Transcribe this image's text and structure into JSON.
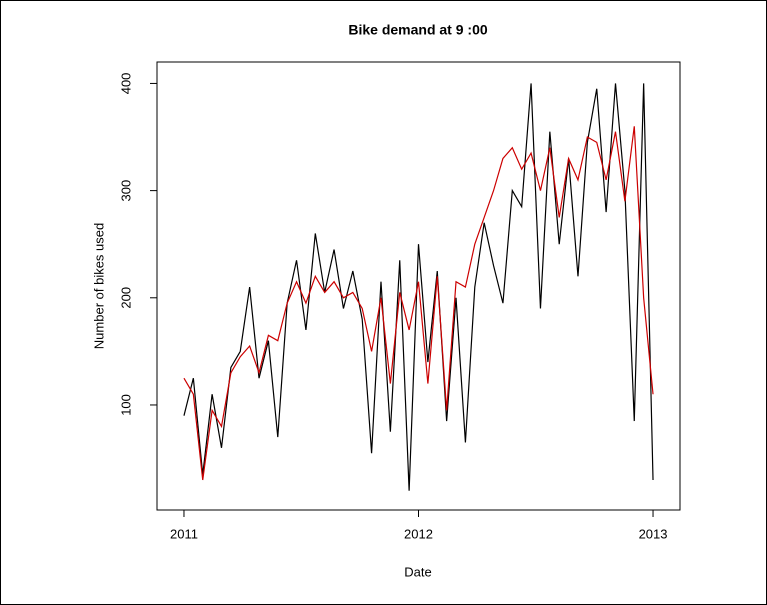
{
  "chart_data": {
    "type": "line",
    "title": "Bike demand at  9 :00",
    "x_label": "Date",
    "y_label": "Number of bikes used",
    "x": [
      2011,
      2011.04,
      2011.08,
      2011.12,
      2011.16,
      2011.2,
      2011.24,
      2011.28,
      2011.32,
      2011.36,
      2011.4,
      2011.44,
      2011.48,
      2011.52,
      2011.56,
      2011.6,
      2011.64,
      2011.68,
      2011.72,
      2011.76,
      2011.8,
      2011.84,
      2011.88,
      2011.92,
      2011.96,
      2012,
      2012.04,
      2012.08,
      2012.12,
      2012.16,
      2012.2,
      2012.24,
      2012.28,
      2012.32,
      2012.36,
      2012.4,
      2012.44,
      2012.48,
      2012.52,
      2012.56,
      2012.6,
      2012.64,
      2012.68,
      2012.72,
      2012.76,
      2012.8,
      2012.84,
      2012.88,
      2012.92,
      2012.96,
      2013
    ],
    "series": [
      {
        "color": "#000000",
        "values": [
          90,
          125,
          35,
          110,
          60,
          135,
          150,
          210,
          125,
          160,
          70,
          195,
          235,
          170,
          260,
          205,
          245,
          190,
          225,
          180,
          55,
          215,
          75,
          235,
          20,
          250,
          140,
          225,
          85,
          200,
          65,
          210,
          270,
          230,
          195,
          300,
          285,
          400,
          190,
          355,
          250,
          330,
          220,
          345,
          395,
          280,
          400,
          300,
          85,
          400,
          30
        ]
      },
      {
        "color": "#cc0000",
        "values": [
          125,
          110,
          30,
          95,
          80,
          130,
          145,
          155,
          130,
          165,
          160,
          195,
          215,
          195,
          220,
          205,
          215,
          200,
          205,
          190,
          150,
          200,
          120,
          205,
          170,
          215,
          120,
          220,
          95,
          215,
          210,
          250,
          275,
          300,
          330,
          340,
          320,
          335,
          300,
          340,
          275,
          330,
          310,
          350,
          345,
          310,
          355,
          290,
          360,
          200,
          110
        ]
      }
    ],
    "xlim": [
      2010.885,
      2013.115
    ],
    "xticks": [
      2011,
      2012,
      2013
    ],
    "ylim": [
      2,
      420
    ],
    "yticks": [
      100,
      200,
      300,
      400
    ],
    "grid": false
  }
}
